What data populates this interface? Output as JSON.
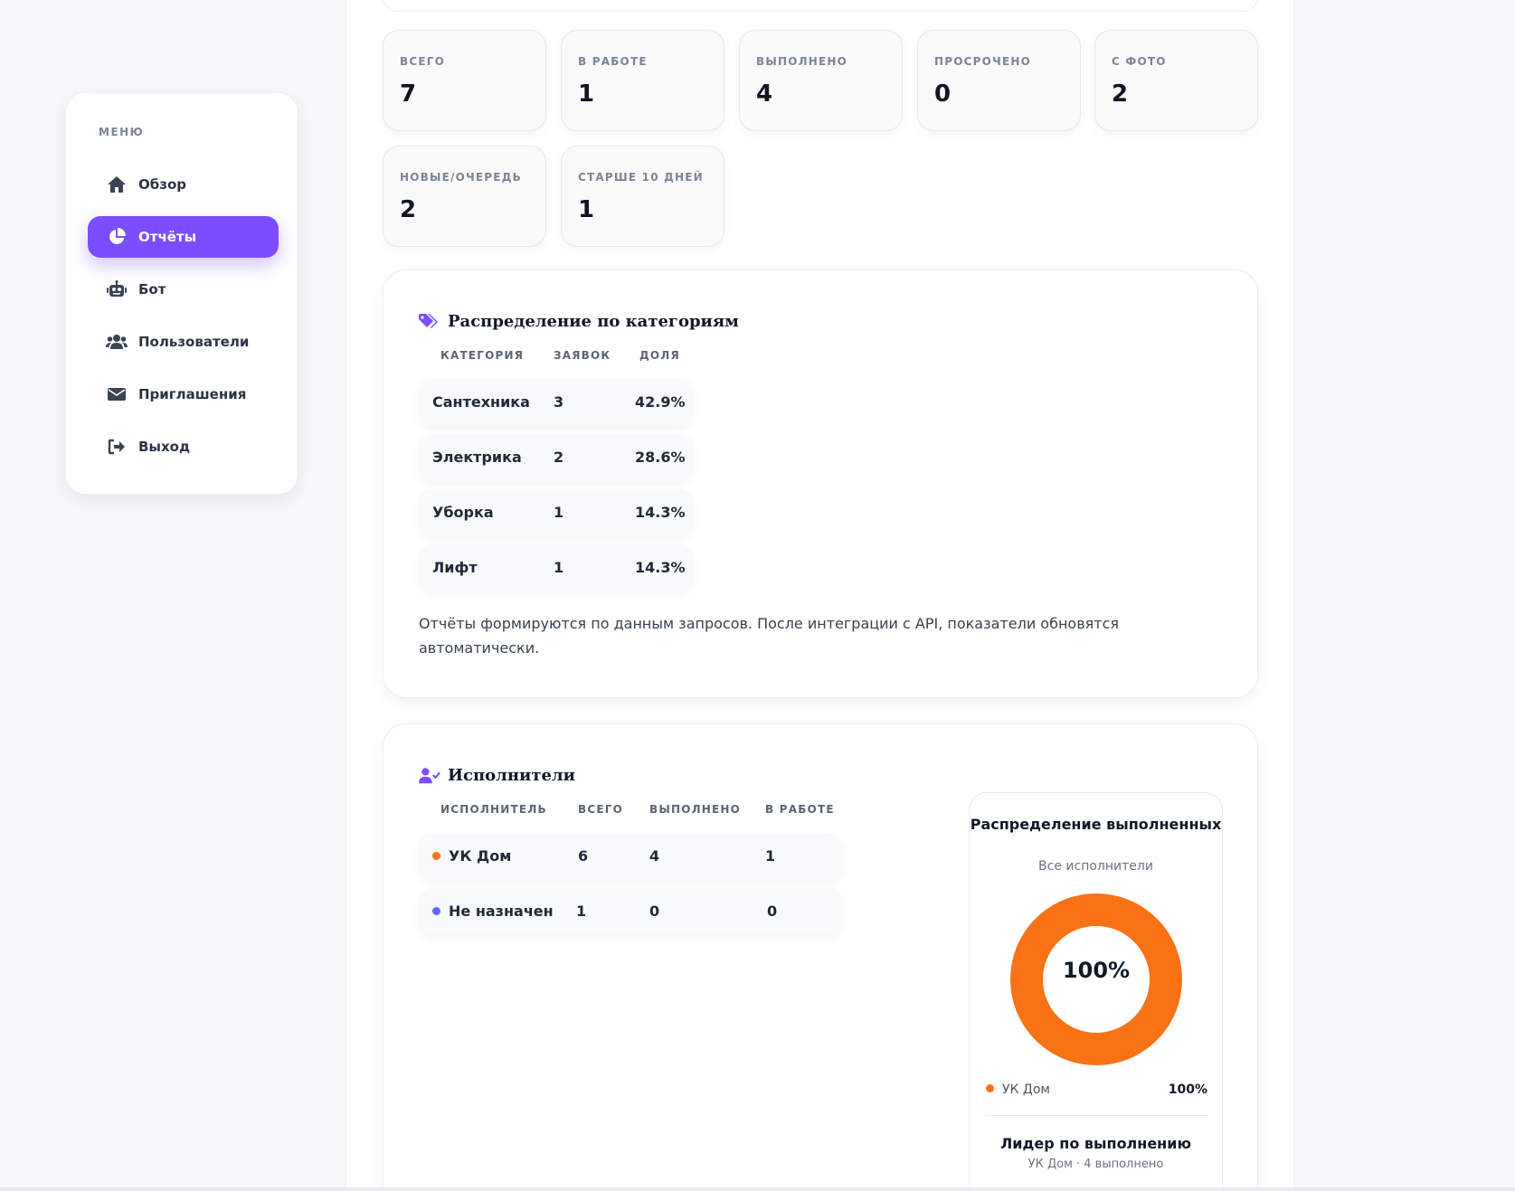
{
  "sidebar": {
    "menu_label": "МЕНЮ",
    "items": [
      {
        "label": "Обзор",
        "icon": "home-icon"
      },
      {
        "label": "Отчёты",
        "icon": "pie-chart-icon",
        "active": true
      },
      {
        "label": "Бот",
        "icon": "robot-icon"
      },
      {
        "label": "Пользователи",
        "icon": "users-icon"
      },
      {
        "label": "Приглашения",
        "icon": "envelope-icon"
      },
      {
        "label": "Выход",
        "icon": "logout-icon"
      }
    ]
  },
  "stats": [
    {
      "label": "ВСЕГО",
      "value": "7"
    },
    {
      "label": "В РАБОТЕ",
      "value": "1"
    },
    {
      "label": "ВЫПОЛНЕНО",
      "value": "4"
    },
    {
      "label": "ПРОСРОЧЕНО",
      "value": "0"
    },
    {
      "label": "С ФОТО",
      "value": "2"
    },
    {
      "label": "НОВЫЕ/ОЧЕРЕДЬ",
      "value": "2"
    },
    {
      "label": "СТАРШЕ 10 ДНЕЙ",
      "value": "1"
    }
  ],
  "categories": {
    "title": "Распределение по категориям",
    "headers": [
      "КАТЕГОРИЯ",
      "ЗАЯВОК",
      "ДОЛЯ"
    ],
    "rows": [
      [
        "Сантехника",
        "3",
        "42.9%"
      ],
      [
        "Электрика",
        "2",
        "28.6%"
      ],
      [
        "Уборка",
        "1",
        "14.3%"
      ],
      [
        "Лифт",
        "1",
        "14.3%"
      ]
    ],
    "note": "Отчёты формируются по данным запросов. После интеграции с API, показатели обновятся автоматически."
  },
  "executors": {
    "title": "Исполнители",
    "headers": [
      "ИСПОЛНИТЕЛЬ",
      "ВСЕГО",
      "ВЫПОЛНЕНО",
      "В РАБОТЕ"
    ],
    "rows": [
      {
        "name": "УК Дом",
        "color": "#f97316",
        "total": "6",
        "done": "4",
        "in_progress": "1"
      },
      {
        "name": "Не назначен",
        "color": "#6366f1",
        "total": "1",
        "done": "0",
        "in_progress": "0"
      }
    ]
  },
  "donut": {
    "title": "Распределение выполненных",
    "subtitle": "Все исполнители",
    "center_label": "100%",
    "legend": [
      {
        "name": "УК Дом",
        "value": "100%",
        "color": "#f97316",
        "share": 1.0
      }
    ],
    "leader_title": "Лидер по выполнению",
    "leader_sub": "УК Дом · 4 выполнено"
  },
  "colors": {
    "accent": "#7c4dff",
    "orange": "#f97316"
  }
}
